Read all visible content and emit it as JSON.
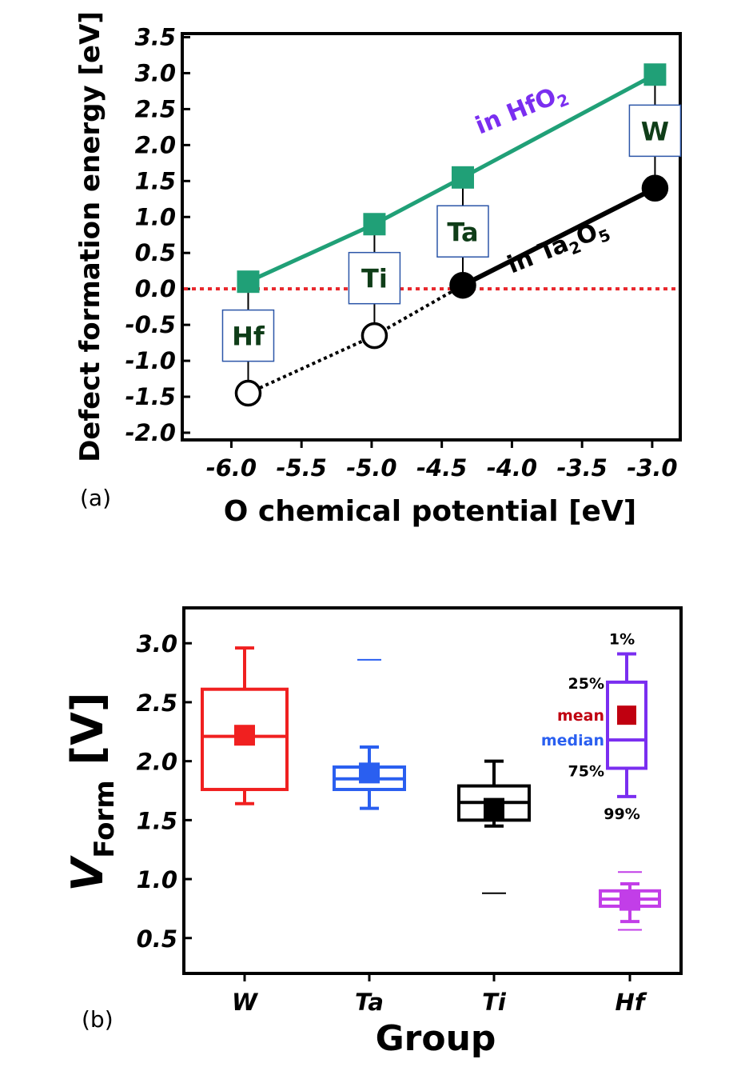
{
  "chart_data": [
    {
      "type": "line",
      "panel_label": "(a)",
      "xlabel": "O chemical potential [eV]",
      "ylabel": "Defect formation energy [eV]",
      "xlim": [
        -6.35,
        -2.8
      ],
      "ylim": [
        -2.1,
        3.55
      ],
      "xticks": [
        -6.0,
        -5.5,
        -5.0,
        -4.5,
        -4.0,
        -3.5,
        -3.0
      ],
      "xtick_labels": [
        "-6.0",
        "-5.5",
        "-5.0",
        "-4.5",
        "-4.0",
        "-3.5",
        "-3.0"
      ],
      "yticks": [
        -2.0,
        -1.5,
        -1.0,
        -0.5,
        0.0,
        0.5,
        1.0,
        1.5,
        2.0,
        2.5,
        3.0,
        3.5
      ],
      "ytick_labels": [
        "-2.0",
        "-1.5",
        "-1.0",
        "-0.5",
        "0.0",
        "0.5",
        "1.0",
        "1.5",
        "2.0",
        "2.5",
        "3.0",
        "3.5"
      ],
      "reference_line": {
        "y": 0.0,
        "color": "#e8262b",
        "style": "dotted"
      },
      "series": [
        {
          "name": "in HfO2",
          "label_main": "in HfO",
          "label_sub": "2",
          "color": "#20a077",
          "label_color": "#7a2ef0",
          "marker": "square",
          "x": [
            -5.88,
            -4.98,
            -4.35,
            -2.98
          ],
          "y": [
            0.1,
            0.9,
            1.55,
            2.98
          ]
        },
        {
          "name": "in Ta2O5",
          "label_main": "in Ta",
          "label_sub": "2",
          "label_main2": "O",
          "label_sub2": "5",
          "color": "#000000",
          "marker": "circle",
          "x": [
            -5.88,
            -4.98,
            -4.35,
            -2.98
          ],
          "y": [
            -1.45,
            -0.65,
            0.05,
            1.4
          ],
          "filled": [
            false,
            false,
            true,
            true
          ]
        }
      ],
      "element_labels": [
        {
          "text": "Hf",
          "x": -5.88,
          "y": -0.65
        },
        {
          "text": "Ti",
          "x": -4.98,
          "y": 0.15
        },
        {
          "text": "Ta",
          "x": -4.35,
          "y": 0.8
        },
        {
          "text": "W",
          "x": -2.98,
          "y": 2.2
        }
      ]
    },
    {
      "type": "box",
      "panel_label": "(b)",
      "xlabel": "Group",
      "ylabel_main": "V",
      "ylabel_sub": "Form",
      "ylabel_unit": " [V]",
      "ylim": [
        0.2,
        3.3
      ],
      "yticks": [
        0.5,
        1.0,
        1.5,
        2.0,
        2.5,
        3.0
      ],
      "ytick_labels": [
        "0.5",
        "1.0",
        "1.5",
        "2.0",
        "2.5",
        "3.0"
      ],
      "categories": [
        "W",
        "Ta",
        "Ti",
        "Hf"
      ],
      "boxes": [
        {
          "name": "W",
          "color": "#f02020",
          "whisker_low": 1.64,
          "q1": 1.76,
          "median": 2.21,
          "q3": 2.61,
          "whisker_high": 2.96,
          "mean": 2.22,
          "outliers": []
        },
        {
          "name": "Ta",
          "color": "#2a5ff0",
          "whisker_low": 1.6,
          "q1": 1.76,
          "median": 1.85,
          "q3": 1.95,
          "whisker_high": 2.12,
          "mean": 1.9,
          "outliers": [
            2.86
          ]
        },
        {
          "name": "Ti",
          "color": "#000000",
          "whisker_low": 1.45,
          "q1": 1.5,
          "median": 1.65,
          "q3": 1.79,
          "whisker_high": 2.0,
          "mean": 1.6,
          "outliers": [
            0.88
          ]
        },
        {
          "name": "Hf",
          "color": "#c23ee8",
          "whisker_low": 0.64,
          "q1": 0.77,
          "median": 0.83,
          "q3": 0.9,
          "whisker_high": 0.96,
          "mean": 0.82,
          "outliers": [
            1.06,
            0.57
          ]
        }
      ],
      "legend": {
        "color": "#7a2ef0",
        "mean_color": "#c00010",
        "median_color": "#2a5ff0",
        "box_values": {
          "whisker_high": 2.91,
          "q3": 2.67,
          "median": 2.18,
          "q1": 1.94,
          "whisker_low": 1.7,
          "mean": 2.39
        },
        "labels": {
          "p1": "1%",
          "p25": "25%",
          "mean": "mean",
          "median": "median",
          "p75": "75%",
          "p99": "99%"
        }
      }
    }
  ]
}
